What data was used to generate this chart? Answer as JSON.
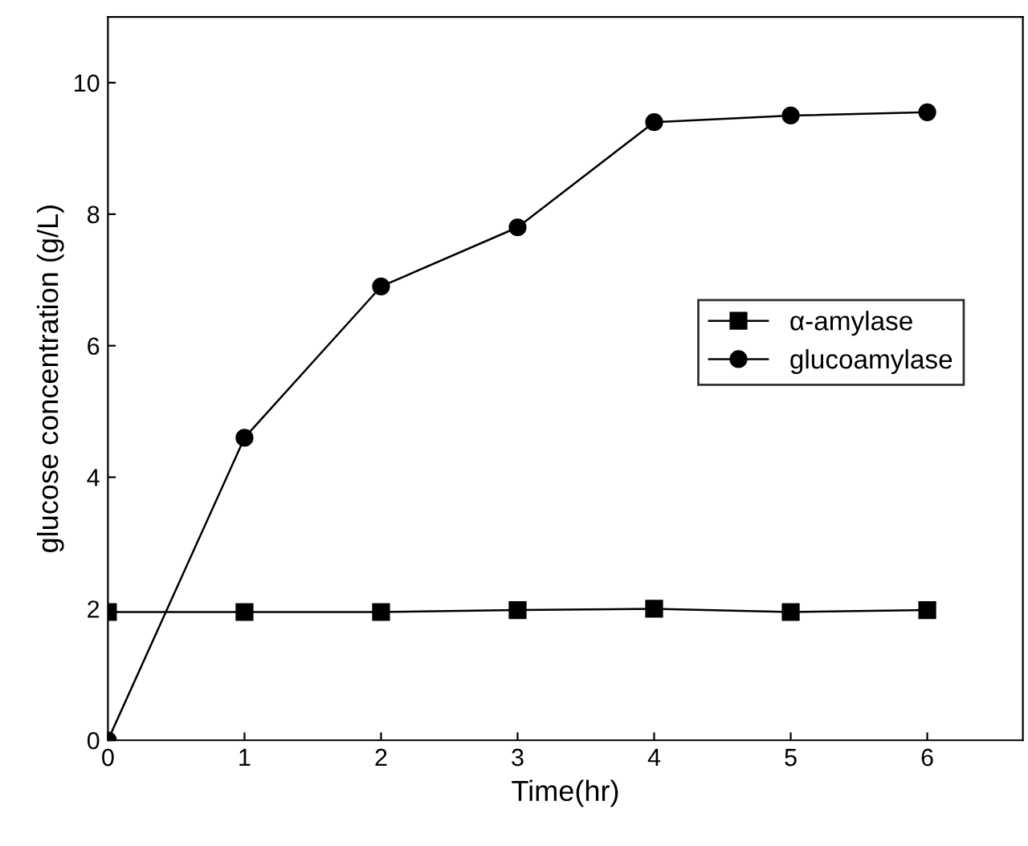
{
  "chart_data": {
    "type": "line",
    "xlabel": "Time(hr)",
    "ylabel": "glucose concentration (g/L)",
    "x": [
      0,
      1,
      2,
      3,
      4,
      5,
      6
    ],
    "series": [
      {
        "name": "α-amylase",
        "color": "#000000",
        "marker": "square",
        "values": [
          1.95,
          1.95,
          1.95,
          1.98,
          2.0,
          1.95,
          1.98
        ]
      },
      {
        "name": "glucoamylase",
        "color": "#000000",
        "marker": "circle",
        "values": [
          0,
          4.6,
          6.9,
          7.8,
          9.4,
          9.5,
          9.55
        ]
      }
    ],
    "xlim": [
      0,
      6.7
    ],
    "xticks": [
      0,
      1,
      2,
      3,
      4,
      5,
      6
    ],
    "ylim": [
      0,
      11
    ],
    "yticks": [
      0,
      2,
      4,
      6,
      8,
      10
    ],
    "legend": "right",
    "grid": false,
    "line_style": "solid"
  }
}
